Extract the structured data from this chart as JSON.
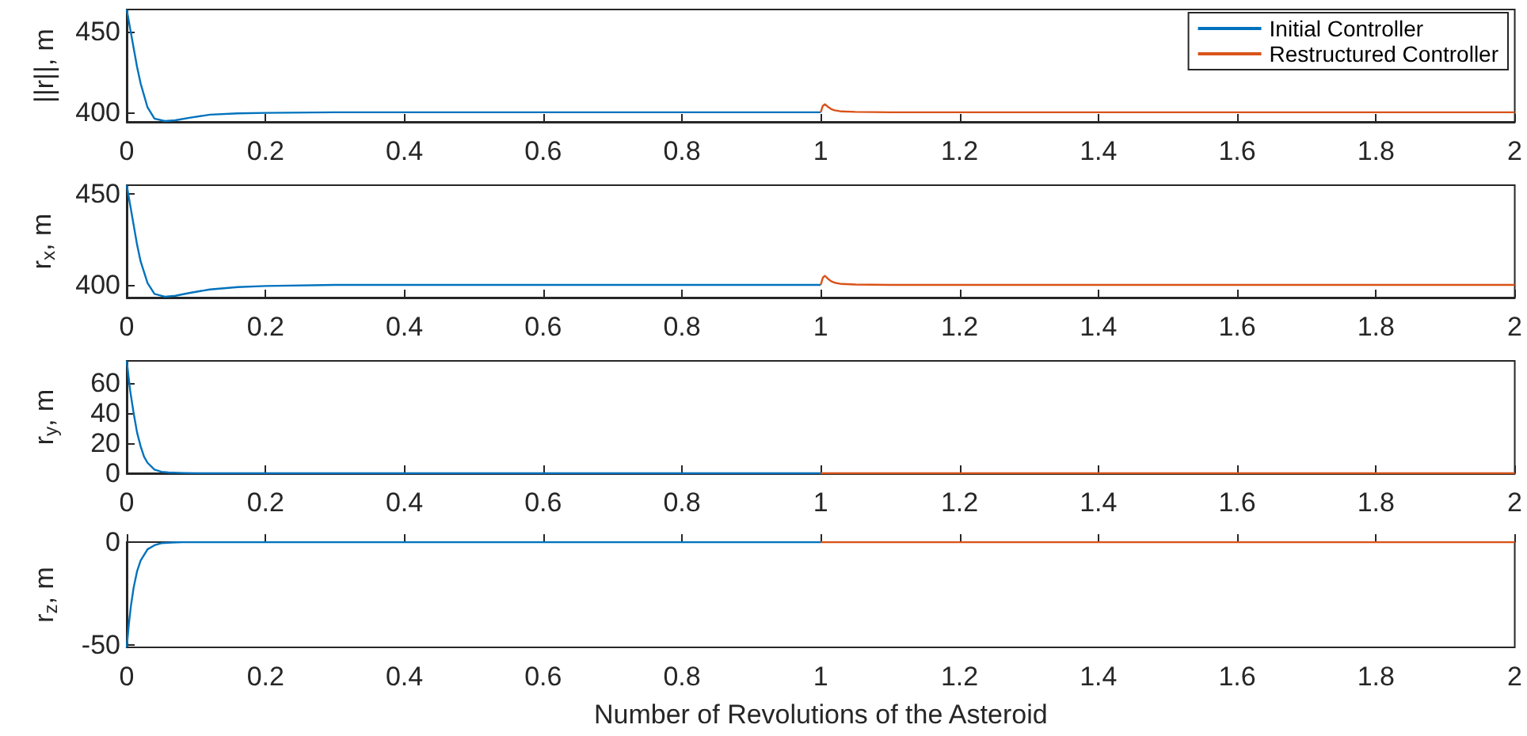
{
  "chart_data": [
    {
      "type": "line",
      "ylabel": "||r||, m",
      "xlim": [
        0,
        2
      ],
      "xticks": [
        0,
        0.2,
        0.4,
        0.6,
        0.8,
        1,
        1.2,
        1.4,
        1.6,
        1.8,
        2
      ],
      "ylim": [
        394,
        464
      ],
      "yticks": [
        400,
        450
      ],
      "legend": "top right",
      "grid": false,
      "series": [
        {
          "name": "Initial Controller",
          "color": "#0072bd",
          "x": [
            0,
            0.005,
            0.01,
            0.015,
            0.02,
            0.03,
            0.04,
            0.055,
            0.07,
            0.09,
            0.12,
            0.16,
            0.2,
            0.3,
            0.5,
            1
          ],
          "values": [
            464,
            452,
            440,
            428,
            418,
            403,
            396,
            394.5,
            395,
            396.5,
            398.5,
            399.3,
            399.6,
            400,
            400,
            400
          ]
        },
        {
          "name": "Restructured Controller",
          "color": "#d95319",
          "x": [
            1,
            1.003,
            1.006,
            1.01,
            1.015,
            1.02,
            1.03,
            1.05,
            1.1,
            1.5,
            2
          ],
          "values": [
            400,
            404,
            405,
            403.5,
            402,
            401.2,
            400.5,
            400.2,
            400,
            400,
            400
          ]
        }
      ]
    },
    {
      "type": "line",
      "ylabel": "r$_{x}$, m",
      "xlim": [
        0,
        2
      ],
      "xticks": [
        0,
        0.2,
        0.4,
        0.6,
        0.8,
        1,
        1.2,
        1.4,
        1.6,
        1.8,
        2
      ],
      "ylim": [
        393,
        455
      ],
      "yticks": [
        400,
        450
      ],
      "grid": false,
      "series": [
        {
          "color": "#0072bd",
          "x": [
            0,
            0.005,
            0.01,
            0.015,
            0.02,
            0.03,
            0.04,
            0.055,
            0.07,
            0.09,
            0.12,
            0.16,
            0.2,
            0.3,
            0.5,
            1
          ],
          "values": [
            455,
            444,
            433,
            422,
            413,
            401,
            395,
            393.5,
            394,
            395.5,
            397.5,
            398.8,
            399.4,
            400,
            400,
            400
          ]
        },
        {
          "color": "#d95319",
          "x": [
            1,
            1.003,
            1.006,
            1.01,
            1.015,
            1.02,
            1.03,
            1.05,
            1.1,
            1.5,
            2
          ],
          "values": [
            400,
            404,
            405,
            403.5,
            402,
            401.2,
            400.5,
            400.2,
            400,
            400,
            400
          ]
        }
      ]
    },
    {
      "type": "line",
      "ylabel": "r$_{y}$, m",
      "xlim": [
        0,
        2
      ],
      "xticks": [
        0,
        0.2,
        0.4,
        0.6,
        0.8,
        1,
        1.2,
        1.4,
        1.6,
        1.8,
        2
      ],
      "ylim": [
        0,
        75
      ],
      "yticks": [
        0,
        20,
        40,
        60
      ],
      "grid": false,
      "series": [
        {
          "color": "#0072bd",
          "x": [
            0,
            0.005,
            0.01,
            0.015,
            0.02,
            0.025,
            0.03,
            0.04,
            0.05,
            0.06,
            0.08,
            0.1,
            0.5,
            1
          ],
          "values": [
            75,
            55,
            40,
            27,
            18,
            11,
            7,
            2.5,
            1,
            0.5,
            0.2,
            0,
            0,
            0
          ]
        },
        {
          "color": "#d95319",
          "x": [
            1,
            1.5,
            2
          ],
          "values": [
            0,
            0,
            0
          ]
        }
      ]
    },
    {
      "type": "line",
      "ylabel": "r$_{z}$, m",
      "xlabel": "Number of Revolutions of the Asteroid",
      "xlim": [
        0,
        2
      ],
      "xticks": [
        0,
        0.2,
        0.4,
        0.6,
        0.8,
        1,
        1.2,
        1.4,
        1.6,
        1.8,
        2
      ],
      "ylim": [
        -51,
        0
      ],
      "yticks": [
        -50,
        0
      ],
      "grid": false,
      "series": [
        {
          "color": "#0072bd",
          "x": [
            0,
            0.003,
            0.006,
            0.01,
            0.015,
            0.02,
            0.03,
            0.04,
            0.05,
            0.065,
            0.08,
            0.5,
            1
          ],
          "values": [
            -51,
            -40,
            -31,
            -22,
            -14,
            -9,
            -3.5,
            -1.5,
            -0.5,
            -0.2,
            0,
            0,
            0
          ]
        },
        {
          "color": "#d95319",
          "x": [
            1,
            1.5,
            2
          ],
          "values": [
            0,
            0,
            0
          ]
        }
      ]
    }
  ]
}
